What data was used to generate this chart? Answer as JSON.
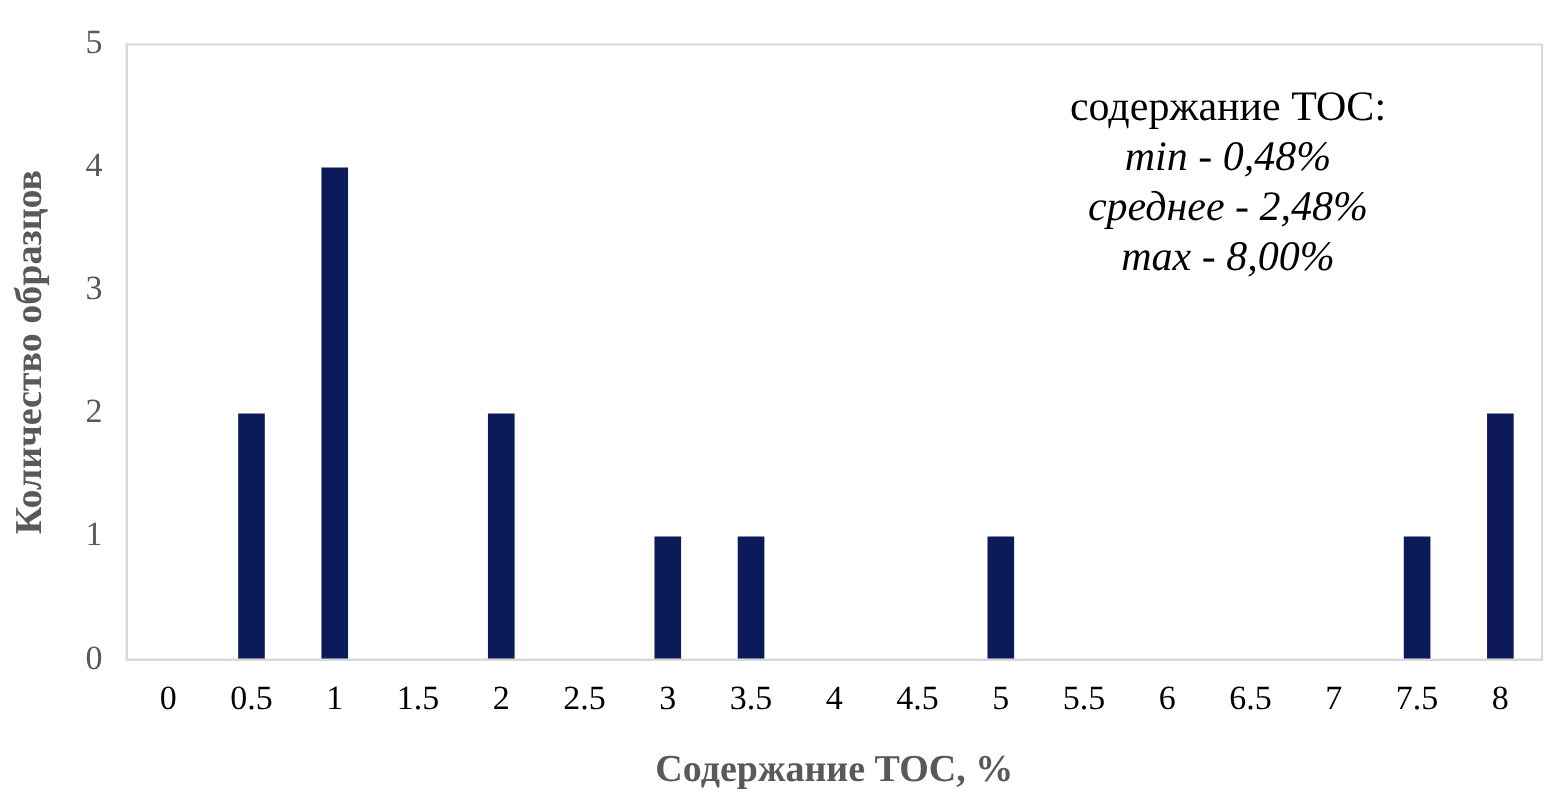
{
  "chart_data": {
    "type": "bar",
    "xlabel": "Содержание TOC, %",
    "ylabel": "Количество образцов",
    "categories": [
      "0",
      "0.5",
      "1",
      "1.5",
      "2",
      "2.5",
      "3",
      "3.5",
      "4",
      "4.5",
      "5",
      "5.5",
      "6",
      "6.5",
      "7",
      "7.5",
      "8"
    ],
    "values": [
      0,
      2,
      4,
      0,
      2,
      0,
      1,
      1,
      0,
      0,
      1,
      0,
      0,
      0,
      0,
      1,
      2
    ],
    "color": "#0c1a5a",
    "ylim": [
      0,
      5
    ],
    "yticks": [
      0,
      1,
      2,
      3,
      4,
      5
    ],
    "grid": false,
    "legend": false,
    "annotations": [
      "содержание TOC:",
      "min - 0,48%",
      "среднее - 2,48%",
      "max - 8,00%"
    ]
  }
}
